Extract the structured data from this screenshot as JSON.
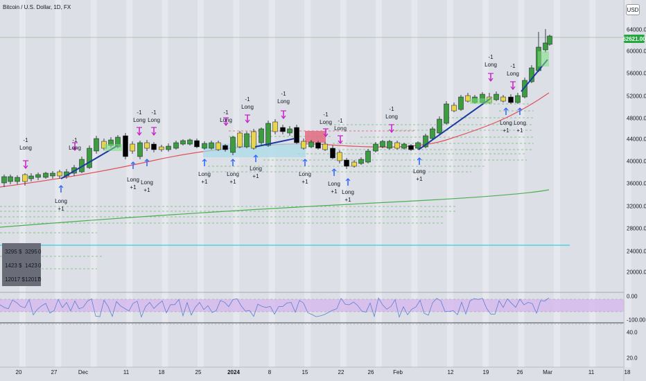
{
  "chart": {
    "title": "Bitcoin / U.S. Dollar, 1D, FX",
    "currency": "USD",
    "last_price": "62621.00"
  },
  "y_axis": [
    "64000.00",
    "60000.00",
    "56000.00",
    "52000.00",
    "48000.00",
    "44000.00",
    "40000.00",
    "36000.00",
    "32000.00",
    "28000.00",
    "24000.00",
    "20000.00"
  ],
  "osc_axis": [
    "0.00",
    "-100.00"
  ],
  "pane3_axis": [
    "40.0",
    "20.0"
  ],
  "x_axis": [
    {
      "label": "20",
      "bold": false
    },
    {
      "label": "27",
      "bold": false
    },
    {
      "label": "Dec",
      "bold": false
    },
    {
      "label": "11",
      "bold": false
    },
    {
      "label": "18",
      "bold": false
    },
    {
      "label": "25",
      "bold": false
    },
    {
      "label": "2024",
      "bold": true
    },
    {
      "label": "8",
      "bold": false
    },
    {
      "label": "15",
      "bold": false
    },
    {
      "label": "22",
      "bold": false
    },
    {
      "label": "26",
      "bold": false
    },
    {
      "label": "Feb",
      "bold": false
    },
    {
      "label": "12",
      "bold": false
    },
    {
      "label": "19",
      "bold": false
    },
    {
      "label": "26",
      "bold": false
    },
    {
      "label": "Mar",
      "bold": false
    },
    {
      "label": "11",
      "bold": false
    },
    {
      "label": "18",
      "bold": false
    }
  ],
  "stats_table": [
    [
      "3295 $",
      "3295",
      "0"
    ],
    [
      "1423 $",
      "1423",
      "0"
    ],
    [
      "12017 $",
      "12017",
      "0"
    ]
  ],
  "signals": {
    "short_label": "-1",
    "long_label": "Long",
    "plus_label": "+1"
  },
  "colors": {
    "up": "#3d9c40",
    "down": "#000000",
    "neutral": "#e8d44d",
    "ma_fast": "#e0505a",
    "ma_slow": "#4caf50",
    "arrow": "#1a3a9e",
    "short_marker": "#c81ec8",
    "long_marker": "#2962ff",
    "h_line": "#33d1e0",
    "price_tag": "#26a641"
  }
}
